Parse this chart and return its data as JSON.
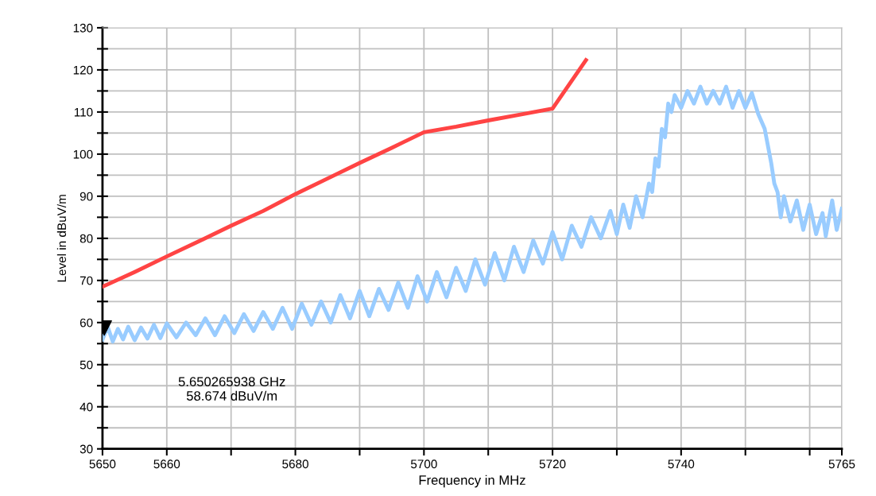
{
  "chart_data": {
    "type": "line",
    "xlabel": "Frequency in MHz",
    "ylabel": "Level in dBuV/m",
    "xlim": [
      5650,
      5765
    ],
    "xticks": [
      5650,
      5660,
      {
        "value": 5670,
        "label": null
      },
      5680,
      {
        "value": 5690,
        "label": null
      },
      5700,
      {
        "value": 5710,
        "label": null
      },
      5720,
      {
        "value": 5730,
        "label": null
      },
      5740,
      {
        "value": 5750,
        "label": null
      },
      {
        "value": 5760,
        "label": null
      },
      5765
    ],
    "ylim": [
      30,
      130
    ],
    "yticks": [
      30,
      {
        "value": 35,
        "label": null
      },
      40,
      {
        "value": 45,
        "label": null
      },
      50,
      {
        "value": 55,
        "label": null
      },
      60,
      {
        "value": 65,
        "label": null
      },
      70,
      {
        "value": 75,
        "label": null
      },
      80,
      {
        "value": 85,
        "label": null
      },
      90,
      {
        "value": 95,
        "label": null
      },
      100,
      {
        "value": 105,
        "label": null
      },
      110,
      {
        "value": 115,
        "label": null
      },
      120,
      {
        "value": 125,
        "label": null
      },
      130
    ],
    "grid": true,
    "series": [
      {
        "color": "#99ccff",
        "x": [
          5650,
          5650.8,
          5651.6,
          5652.4,
          5653.2,
          5654,
          5655,
          5656,
          5657,
          5658,
          5659,
          5660,
          5661.5,
          5663,
          5664.5,
          5666,
          5667.5,
          5669,
          5670.5,
          5672,
          5673.5,
          5675,
          5676.5,
          5678,
          5679.5,
          5681,
          5682.5,
          5684,
          5685.5,
          5687,
          5688.5,
          5690,
          5691.5,
          5693,
          5694.5,
          5696,
          5697.5,
          5699,
          5700.5,
          5702,
          5703.5,
          5705,
          5706.5,
          5708,
          5709.5,
          5711,
          5712.5,
          5714,
          5715.5,
          5717,
          5718.5,
          5720,
          5721.5,
          5723,
          5724.5,
          5726,
          5727.5,
          5729,
          5730,
          5731,
          5732,
          5733,
          5734,
          5735,
          5735.5,
          5736,
          5736.5,
          5737,
          5737.5,
          5738,
          5738.5,
          5739,
          5740,
          5741,
          5742,
          5743,
          5744,
          5745,
          5746,
          5747,
          5748,
          5749,
          5750,
          5751,
          5752,
          5753,
          5753.5,
          5754,
          5754.5,
          5755,
          5755.5,
          5756,
          5757,
          5758,
          5759,
          5760,
          5761,
          5762,
          5762.5,
          5763.5,
          5764.2,
          5765
        ],
        "values": [
          56,
          59,
          55.5,
          58.5,
          56,
          59,
          55.8,
          58.8,
          56.2,
          59.5,
          56.3,
          59.8,
          56.5,
          60,
          57,
          61,
          57,
          61.5,
          57.5,
          62,
          58,
          62.5,
          58.5,
          63.5,
          58.5,
          64.5,
          59.5,
          65,
          60,
          66.5,
          61,
          67.5,
          61.5,
          68,
          63,
          69.5,
          63.5,
          71,
          65,
          72,
          66,
          73,
          67.5,
          75,
          69,
          76.5,
          70,
          78,
          72,
          79.5,
          74,
          81.5,
          75,
          83,
          78,
          85,
          80,
          86.5,
          81,
          88,
          82.5,
          90,
          85,
          93,
          91,
          99,
          97,
          106,
          104,
          112,
          110,
          114,
          111,
          115,
          112,
          116,
          112,
          115,
          112,
          116,
          111,
          115,
          111,
          114.5,
          109.5,
          106,
          102,
          98,
          93,
          91,
          85,
          90,
          84,
          89,
          82,
          88,
          81,
          86,
          80.5,
          89,
          82,
          87
        ]
      },
      {
        "color": "#ff4444",
        "x": [
          5650,
          5655,
          5660,
          5665,
          5670,
          5675,
          5680,
          5685,
          5690,
          5695,
          5700,
          5705,
          5710,
          5715,
          5720,
          5725.2
        ],
        "values": [
          68.5,
          72,
          75.7,
          79.3,
          83,
          86.5,
          90.5,
          94.2,
          97.9,
          101.5,
          105.2,
          106.5,
          108,
          109.4,
          110.8,
          122.3
        ]
      },
      {
        "type": "scatter",
        "color": "#000000",
        "marker": "triangle",
        "x": [
          5650.265938
        ],
        "values": [
          58.7
        ]
      }
    ],
    "annotations": [
      "5.650265938 GHz\n58.674 dBuV/m"
    ]
  }
}
